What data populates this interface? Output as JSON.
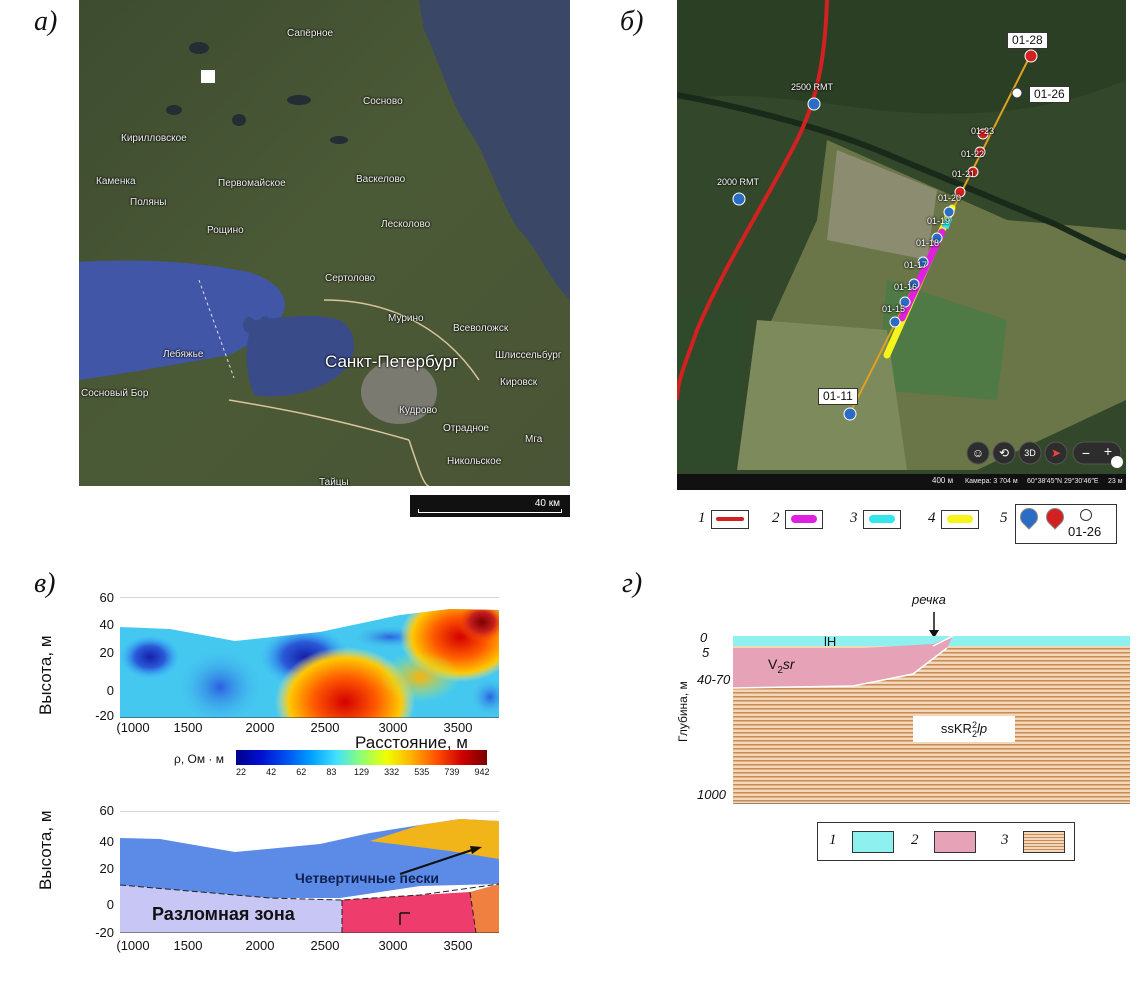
{
  "panels": {
    "a": {
      "letter": "а)",
      "places": [
        {
          "id": "saperno",
          "name": "Сапёрное"
        },
        {
          "id": "kirillovskoe",
          "name": "Кирилловское"
        },
        {
          "id": "sosnovo",
          "name": "Сосново"
        },
        {
          "id": "kamenka",
          "name": "Каменка"
        },
        {
          "id": "pervomayskoe",
          "name": "Первомайское"
        },
        {
          "id": "vaskelovo",
          "name": "Васкелово"
        },
        {
          "id": "polyany",
          "name": "Поляны"
        },
        {
          "id": "roshchino",
          "name": "Рощино"
        },
        {
          "id": "leskolovo",
          "name": "Лесколово"
        },
        {
          "id": "sertolovo",
          "name": "Сертолово"
        },
        {
          "id": "murino",
          "name": "Мурино"
        },
        {
          "id": "vsevolozhsk",
          "name": "Всеволожск"
        },
        {
          "id": "spb",
          "name": "Санкт-Петербург"
        },
        {
          "id": "shlisselburg",
          "name": "Шлиссельбург"
        },
        {
          "id": "lebyazhe",
          "name": "Лебяжье"
        },
        {
          "id": "sosnovy_bor",
          "name": "Сосновый Бор"
        },
        {
          "id": "kirovsk",
          "name": "Кировск"
        },
        {
          "id": "kudrovo",
          "name": "Кудрово"
        },
        {
          "id": "otradnoe",
          "name": "Отрадное"
        },
        {
          "id": "mga",
          "name": "Мга"
        },
        {
          "id": "nikolskoe",
          "name": "Никольское"
        },
        {
          "id": "taitsy",
          "name": "Тайцы"
        }
      ],
      "scale_label": "40 км"
    },
    "b": {
      "letter": "б)",
      "box_labels": {
        "p28": "01-28",
        "p26": "01-26",
        "p11": "01-11"
      },
      "rmt": {
        "r2500": "2500 RMT",
        "r2000": "2000 RMT"
      },
      "points": [
        "01-23",
        "01-22",
        "01-21",
        "01-20",
        "01-19",
        "01-18",
        "01-17",
        "01-16",
        "01-15"
      ],
      "map_controls": [
        "3D",
        "−",
        "+"
      ],
      "status_scale": "400 м",
      "status_camera": "Камера: 3 704 м",
      "status_coords": "60°38′45″N 29°30′46″E",
      "status_alt": "23 м",
      "legend": [
        {
          "num": "1",
          "color": "#d32020"
        },
        {
          "num": "2",
          "color": "#e020e0"
        },
        {
          "num": "3",
          "color": "#33e6ec"
        },
        {
          "num": "4",
          "color": "#f5f51a"
        },
        {
          "num": "5",
          "label": "01-26"
        }
      ]
    },
    "v": {
      "letter": "в)",
      "top_ylabel": "Высота, м",
      "bottom_ylabel": "Высота, м",
      "xlabel": "Расстояние, м",
      "yticks": [
        "60",
        "40",
        "20",
        "0",
        "-20"
      ],
      "xticks": [
        "(1000",
        "1500",
        "2000",
        "2500",
        "3000",
        "3500"
      ],
      "colorbar_label": "ρ, Ом · м",
      "colorbar_ticks": [
        "22",
        "42",
        "62",
        "83",
        "129",
        "332",
        "535",
        "739",
        "942"
      ],
      "labels": {
        "sands": "Четвертичные пески",
        "fault": "Разломная зона"
      }
    },
    "g": {
      "letter": "г)",
      "river": "речка",
      "ylabel": "Глубина, м",
      "depth_ticks": [
        "0",
        "5",
        "40-70",
        "1000"
      ],
      "unit_lh": "lH",
      "unit_v_main": "V",
      "unit_v_sub": "2",
      "unit_v_ital": "sr",
      "unit_ss_pre": "ssKR",
      "unit_ss_sup": "2",
      "unit_ss_sub": "2",
      "unit_ss_ital": "lp",
      "legend": [
        {
          "num": "1",
          "color": "#8ff0f0"
        },
        {
          "num": "2",
          "color": "#e6a3b8"
        },
        {
          "num": "3",
          "color": "#d9a574"
        }
      ]
    }
  },
  "chart_data": [
    {
      "type": "heatmap",
      "title": "",
      "xlabel": "Расстояние, м",
      "ylabel": "Высота, м",
      "xlim": [
        1000,
        3800
      ],
      "ylim": [
        -20,
        60
      ],
      "xticks": [
        1000,
        1500,
        2000,
        2500,
        3000,
        3500
      ],
      "yticks": [
        60,
        40,
        20,
        0,
        -20
      ],
      "colorbar": {
        "label": "ρ, Ом · м",
        "ticks": [
          22,
          42,
          62,
          83,
          129,
          332,
          535,
          739,
          942
        ]
      }
    },
    {
      "type": "area",
      "title": "",
      "xlabel": "",
      "ylabel": "Высота, м",
      "xlim": [
        1000,
        3800
      ],
      "ylim": [
        -20,
        60
      ],
      "xticks": [
        1000,
        1500,
        2000,
        2500,
        3000,
        3500
      ],
      "yticks": [
        60,
        40,
        20,
        0,
        -20
      ],
      "units": [
        "Четвертичные пески",
        "Разломная зона"
      ]
    }
  ]
}
